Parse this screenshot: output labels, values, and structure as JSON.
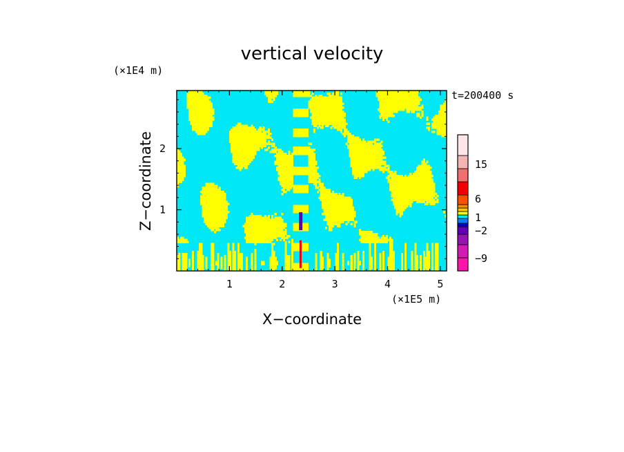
{
  "chart_data": {
    "type": "heatmap",
    "title": "vertical velocity",
    "xlabel": "X−coordinate",
    "ylabel": "Z−coordinate",
    "x_unit": "(×1E5 m)",
    "y_unit": "(×1E4 m)",
    "time_label": "t=200400 s",
    "xlim": [
      0,
      5.12
    ],
    "ylim": [
      0,
      2.95
    ],
    "x_ticks": [
      1,
      2,
      3,
      4,
      5
    ],
    "y_ticks": [
      1,
      2
    ],
    "colors": {
      "positive": "#ffff00",
      "negative": "#00e8f5",
      "frame": "#000000"
    },
    "colorbar": {
      "levels": [
        {
          "color": "#ff14aa"
        },
        {
          "color": "#d21ab4"
        },
        {
          "color": "#9614b4"
        },
        {
          "color": "#6400b4"
        },
        {
          "color": "#0000c8"
        },
        {
          "color": "#0082ff"
        },
        {
          "color": "#00e8f5"
        },
        {
          "color": "#ffff00"
        },
        {
          "color": "#ffc800"
        },
        {
          "color": "#ff8c00"
        },
        {
          "color": "#ff5000"
        },
        {
          "color": "#f00000"
        },
        {
          "color": "#f07070"
        },
        {
          "color": "#f5b4b4"
        },
        {
          "color": "#fde6e6"
        }
      ],
      "tick_labels": [
        "−9",
        "−2",
        "1",
        "6",
        "15"
      ]
    }
  }
}
